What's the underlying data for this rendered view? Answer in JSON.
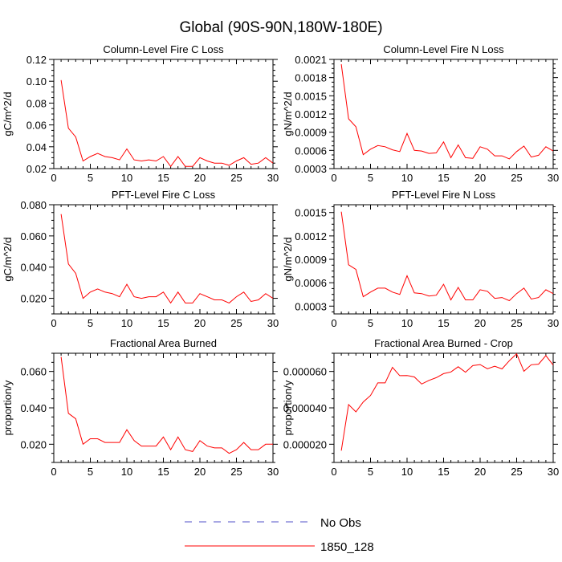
{
  "figure_title": "Global (90S-90N,180W-180E)",
  "legend": [
    {
      "label": "No Obs",
      "color": "#5050c8",
      "style": "dashed"
    },
    {
      "label": "1850_128",
      "color": "#ff0000",
      "style": "solid"
    }
  ],
  "chart_data": [
    {
      "type": "line",
      "title": "Column-Level Fire C Loss",
      "ylabel": "gC/m^2/d",
      "xlabel": "",
      "xlim": [
        0,
        30
      ],
      "ylim": [
        0.02,
        0.12
      ],
      "xticks": [
        0,
        5,
        10,
        15,
        20,
        25,
        30
      ],
      "xtick_labels": [
        "0",
        "5",
        "10",
        "15",
        "20",
        "25",
        "30"
      ],
      "yticks": [
        0.02,
        0.04,
        0.06,
        0.08,
        0.1,
        0.12
      ],
      "ytick_labels": [
        "0.02",
        "0.04",
        "0.06",
        "0.08",
        "0.10",
        "0.12"
      ],
      "series": [
        {
          "name": "1850_128",
          "color": "#ff0000",
          "x": [
            1,
            2,
            3,
            4,
            5,
            6,
            7,
            8,
            9,
            10,
            11,
            12,
            13,
            14,
            15,
            16,
            17,
            18,
            19,
            20,
            21,
            22,
            23,
            24,
            25,
            26,
            27,
            28,
            29,
            30
          ],
          "values": [
            0.101,
            0.057,
            0.049,
            0.027,
            0.031,
            0.034,
            0.031,
            0.03,
            0.028,
            0.038,
            0.028,
            0.027,
            0.028,
            0.027,
            0.031,
            0.022,
            0.031,
            0.022,
            0.022,
            0.03,
            0.027,
            0.025,
            0.025,
            0.023,
            0.027,
            0.03,
            0.024,
            0.025,
            0.03,
            0.025
          ]
        }
      ]
    },
    {
      "type": "line",
      "title": "Column-Level Fire N Loss",
      "ylabel": "gN/m^2/d",
      "xlabel": "",
      "xlim": [
        0,
        30
      ],
      "ylim": [
        0.0003,
        0.0021
      ],
      "xticks": [
        0,
        5,
        10,
        15,
        20,
        25,
        30
      ],
      "xtick_labels": [
        "0",
        "5",
        "10",
        "15",
        "20",
        "25",
        "30"
      ],
      "yticks": [
        0.0003,
        0.0006,
        0.0009,
        0.0012,
        0.0015,
        0.0018,
        0.0021
      ],
      "ytick_labels": [
        "0.0003",
        "0.0006",
        "0.0009",
        "0.0012",
        "0.0015",
        "0.0018",
        "0.0021"
      ],
      "series": [
        {
          "name": "1850_128",
          "color": "#ff0000",
          "x": [
            1,
            2,
            3,
            4,
            5,
            6,
            7,
            8,
            9,
            10,
            11,
            12,
            13,
            14,
            15,
            16,
            17,
            18,
            19,
            20,
            21,
            22,
            23,
            24,
            25,
            26,
            27,
            28,
            29,
            30
          ],
          "values": [
            0.00202,
            0.00112,
            0.00099,
            0.00053,
            0.00062,
            0.00068,
            0.00066,
            0.00061,
            0.00058,
            0.00088,
            0.0006,
            0.00059,
            0.00055,
            0.00056,
            0.00074,
            0.00048,
            0.00069,
            0.00048,
            0.00047,
            0.00066,
            0.00062,
            0.00051,
            0.00051,
            0.00046,
            0.00058,
            0.00067,
            0.00049,
            0.00052,
            0.00066,
            0.00059
          ]
        }
      ]
    },
    {
      "type": "line",
      "title": "PFT-Level Fire C Loss",
      "ylabel": "gC/m^2/d",
      "xlabel": "",
      "xlim": [
        0,
        30
      ],
      "ylim": [
        0.01,
        0.08
      ],
      "xticks": [
        0,
        5,
        10,
        15,
        20,
        25,
        30
      ],
      "xtick_labels": [
        "0",
        "5",
        "10",
        "15",
        "20",
        "25",
        "30"
      ],
      "yticks": [
        0.02,
        0.04,
        0.06,
        0.08
      ],
      "ytick_labels": [
        "0.020",
        "0.040",
        "0.060",
        "0.080"
      ],
      "series": [
        {
          "name": "1850_128",
          "color": "#ff0000",
          "x": [
            1,
            2,
            3,
            4,
            5,
            6,
            7,
            8,
            9,
            10,
            11,
            12,
            13,
            14,
            15,
            16,
            17,
            18,
            19,
            20,
            21,
            22,
            23,
            24,
            25,
            26,
            27,
            28,
            29,
            30
          ],
          "values": [
            0.074,
            0.042,
            0.036,
            0.02,
            0.024,
            0.026,
            0.024,
            0.023,
            0.021,
            0.029,
            0.021,
            0.02,
            0.021,
            0.021,
            0.024,
            0.017,
            0.024,
            0.017,
            0.017,
            0.023,
            0.021,
            0.019,
            0.019,
            0.017,
            0.021,
            0.024,
            0.018,
            0.019,
            0.023,
            0.02
          ]
        }
      ]
    },
    {
      "type": "line",
      "title": "PFT-Level Fire N Loss",
      "ylabel": "gN/m^2/d",
      "xlabel": "",
      "xlim": [
        0,
        30
      ],
      "ylim": [
        0.0002,
        0.0016
      ],
      "xticks": [
        0,
        5,
        10,
        15,
        20,
        25,
        30
      ],
      "xtick_labels": [
        "0",
        "5",
        "10",
        "15",
        "20",
        "25",
        "30"
      ],
      "yticks": [
        0.0003,
        0.0006,
        0.0009,
        0.0012,
        0.0015
      ],
      "ytick_labels": [
        "0.0003",
        "0.0006",
        "0.0009",
        "0.0012",
        "0.0015"
      ],
      "series": [
        {
          "name": "1850_128",
          "color": "#ff0000",
          "x": [
            1,
            2,
            3,
            4,
            5,
            6,
            7,
            8,
            9,
            10,
            11,
            12,
            13,
            14,
            15,
            16,
            17,
            18,
            19,
            20,
            21,
            22,
            23,
            24,
            25,
            26,
            27,
            28,
            29,
            30
          ],
          "values": [
            0.00151,
            0.00083,
            0.00077,
            0.00042,
            0.00048,
            0.00053,
            0.00053,
            0.00048,
            0.00045,
            0.00069,
            0.00047,
            0.00046,
            0.00043,
            0.00044,
            0.00058,
            0.00038,
            0.00054,
            0.00038,
            0.00038,
            0.00051,
            0.00049,
            0.0004,
            0.00041,
            0.00037,
            0.00046,
            0.00053,
            0.00039,
            0.00041,
            0.00051,
            0.00046
          ]
        }
      ]
    },
    {
      "type": "line",
      "title": "Fractional Area Burned",
      "ylabel": "proportion/y",
      "xlabel": "",
      "xlim": [
        0,
        30
      ],
      "ylim": [
        0.01,
        0.07
      ],
      "xticks": [
        0,
        5,
        10,
        15,
        20,
        25,
        30
      ],
      "xtick_labels": [
        "0",
        "5",
        "10",
        "15",
        "20",
        "25",
        "30"
      ],
      "yticks": [
        0.02,
        0.04,
        0.06
      ],
      "ytick_labels": [
        "0.020",
        "0.040",
        "0.060"
      ],
      "series": [
        {
          "name": "1850_128",
          "color": "#ff0000",
          "x": [
            1,
            2,
            3,
            4,
            5,
            6,
            7,
            8,
            9,
            10,
            11,
            12,
            13,
            14,
            15,
            16,
            17,
            18,
            19,
            20,
            21,
            22,
            23,
            24,
            25,
            26,
            27,
            28,
            29,
            30
          ],
          "values": [
            0.068,
            0.037,
            0.034,
            0.02,
            0.023,
            0.023,
            0.021,
            0.021,
            0.021,
            0.028,
            0.022,
            0.019,
            0.019,
            0.019,
            0.024,
            0.017,
            0.024,
            0.017,
            0.016,
            0.022,
            0.019,
            0.018,
            0.018,
            0.015,
            0.017,
            0.021,
            0.017,
            0.017,
            0.02,
            0.02
          ]
        }
      ]
    },
    {
      "type": "line",
      "title": "Fractional Area Burned - Crop",
      "ylabel": "proportion/y",
      "xlabel": "",
      "xlim": [
        0,
        30
      ],
      "ylim": [
        1e-05,
        7e-05
      ],
      "xticks": [
        0,
        5,
        10,
        15,
        20,
        25,
        30
      ],
      "xtick_labels": [
        "0",
        "5",
        "10",
        "15",
        "20",
        "25",
        "30"
      ],
      "yticks": [
        2e-05,
        4e-05,
        6e-05
      ],
      "ytick_labels": [
        "0.000020",
        "0.000040",
        "0.000060"
      ],
      "series": [
        {
          "name": "1850_128",
          "color": "#ff0000",
          "x": [
            1,
            2,
            3,
            4,
            5,
            6,
            7,
            8,
            9,
            10,
            11,
            12,
            13,
            14,
            15,
            16,
            17,
            18,
            19,
            20,
            21,
            22,
            23,
            24,
            25,
            26,
            27,
            28,
            29,
            30
          ],
          "values": [
            1.65e-05,
            4.18e-05,
            3.78e-05,
            4.32e-05,
            4.68e-05,
            5.37e-05,
            5.37e-05,
            6.23e-05,
            5.77e-05,
            5.78e-05,
            5.7e-05,
            5.31e-05,
            5.51e-05,
            5.66e-05,
            5.88e-05,
            5.97e-05,
            6.26e-05,
            5.96e-05,
            6.32e-05,
            6.38e-05,
            6.15e-05,
            6.29e-05,
            6.14e-05,
            6.59e-05,
            6.97e-05,
            6.01e-05,
            6.37e-05,
            6.4e-05,
            6.87e-05,
            6.35e-05
          ]
        }
      ]
    }
  ]
}
